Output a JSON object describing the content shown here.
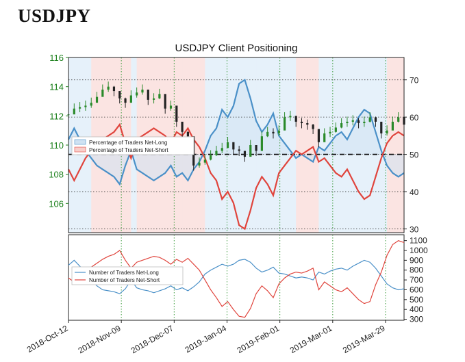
{
  "header": {
    "symbol": "USDJPY"
  },
  "chart_data": [
    {
      "type": "line",
      "title": "USDJPY Client Positioning",
      "x_ticks": [
        "2018-Oct-12",
        "2018-Nov-09",
        "2018-Dec-07",
        "2019-Jan-04",
        "2019-Feb-01",
        "2019-Mar-01",
        "2019-Mar-29"
      ],
      "price_axis": {
        "ticks": [
          106,
          108,
          110,
          112,
          114,
          116
        ],
        "ylim": [
          104,
          116
        ],
        "color": "#1a7f1a",
        "side": "left"
      },
      "pct_axis": {
        "ticks": [
          30,
          40,
          50,
          60,
          70
        ],
        "ylim": [
          29,
          76
        ],
        "side": "right"
      },
      "threshold": 50,
      "legend": {
        "placement": "middle-left",
        "entries": [
          "Percentage of Traders Net-Long",
          "Percentage of Traders Net-Short"
        ]
      },
      "series": [
        {
          "name": "Percentage of Traders Net-Long",
          "color": "#4a90c8",
          "x": [
            0,
            2,
            4,
            6,
            8,
            10,
            12,
            14,
            16,
            18,
            20,
            22,
            24,
            26,
            28,
            30,
            32,
            34,
            36,
            38,
            40,
            42,
            44,
            46,
            48,
            50,
            52,
            54,
            56,
            58,
            60,
            62,
            64,
            66,
            68,
            70,
            72,
            74,
            76,
            78,
            80,
            82,
            84,
            86,
            88,
            90,
            92,
            94,
            96,
            98,
            100,
            102,
            104,
            106,
            108,
            110,
            112,
            114,
            116,
            118
          ],
          "values": [
            54,
            57,
            54,
            51,
            49,
            47,
            46,
            45,
            44,
            42,
            47,
            51,
            46,
            45,
            44,
            43,
            44,
            45,
            47,
            44,
            45,
            43,
            46,
            48,
            51,
            55,
            57,
            62,
            60,
            63,
            69,
            70,
            65,
            59,
            56,
            58,
            61,
            55,
            53,
            51,
            49,
            50,
            49,
            48,
            52,
            51,
            53,
            55,
            56,
            54,
            57,
            60,
            62,
            61,
            56,
            51,
            47,
            45,
            44,
            45
          ]
        },
        {
          "name": "Percentage of Traders Net-Short",
          "color": "#e0443c",
          "x": [
            0,
            2,
            4,
            6,
            8,
            10,
            12,
            14,
            16,
            18,
            20,
            22,
            24,
            26,
            28,
            30,
            32,
            34,
            36,
            38,
            40,
            42,
            44,
            46,
            48,
            50,
            52,
            54,
            56,
            58,
            60,
            62,
            64,
            66,
            68,
            70,
            72,
            74,
            76,
            78,
            80,
            82,
            84,
            86,
            88,
            90,
            92,
            94,
            96,
            98,
            100,
            102,
            104,
            106,
            108,
            110,
            112,
            114,
            116,
            118
          ],
          "values": [
            46,
            43,
            46,
            49,
            51,
            53,
            54,
            55,
            56,
            58,
            53,
            49,
            54,
            55,
            56,
            57,
            56,
            55,
            53,
            56,
            55,
            57,
            54,
            52,
            49,
            45,
            43,
            38,
            40,
            37,
            31,
            30,
            35,
            41,
            44,
            42,
            39,
            45,
            47,
            49,
            51,
            50,
            51,
            52,
            48,
            49,
            47,
            45,
            44,
            46,
            43,
            40,
            38,
            39,
            44,
            49,
            53,
            55,
            56,
            55
          ]
        },
        {
          "name": "Price",
          "type": "ohlc",
          "color": "#222",
          "x": [
            0,
            2,
            4,
            6,
            8,
            10,
            12,
            14,
            16,
            18,
            20,
            22,
            24,
            26,
            28,
            30,
            32,
            34,
            36,
            38,
            40,
            42,
            44,
            46,
            48,
            50,
            52,
            54,
            56,
            58,
            60,
            62,
            64,
            66,
            68,
            70,
            72,
            74,
            76,
            78,
            80,
            82,
            84,
            86,
            88,
            90,
            92,
            94,
            96,
            98,
            100,
            102,
            104,
            106,
            108,
            110,
            112,
            114,
            116,
            118
          ],
          "values": [
            112.1,
            112.5,
            112.6,
            112.7,
            112.9,
            113.3,
            113.8,
            114.0,
            113.7,
            113.2,
            112.9,
            113.4,
            113.6,
            113.8,
            113.1,
            113.2,
            113.5,
            112.5,
            112.7,
            111.6,
            110.9,
            110.6,
            108.6,
            108.8,
            109.0,
            109.3,
            109.6,
            109.8,
            110.2,
            109.7,
            109.6,
            109.2,
            110.0,
            109.6,
            110.6,
            110.9,
            110.8,
            111.0,
            111.9,
            112.0,
            111.6,
            111.5,
            111.4,
            111.1,
            110.2,
            110.8,
            110.9,
            111.2,
            111.5,
            111.6,
            111.7,
            111.5,
            111.6,
            111.9,
            111.6,
            110.8,
            111.0,
            111.6,
            111.9,
            111.4
          ]
        }
      ]
    },
    {
      "type": "line",
      "y_ticks": [
        300,
        400,
        500,
        600,
        700,
        800,
        900,
        1000,
        1100
      ],
      "ylim": [
        290,
        1160
      ],
      "legend": {
        "placement": "top-left",
        "entries": [
          "Number of Traders Net-Long",
          "Number of Traders Net-Short"
        ]
      },
      "series": [
        {
          "name": "Number of Traders Net-Long",
          "color": "#4a90c8",
          "x": [
            0,
            2,
            4,
            6,
            8,
            10,
            12,
            14,
            16,
            18,
            20,
            22,
            24,
            26,
            28,
            30,
            32,
            34,
            36,
            38,
            40,
            42,
            44,
            46,
            48,
            50,
            52,
            54,
            56,
            58,
            60,
            62,
            64,
            66,
            68,
            70,
            72,
            74,
            76,
            78,
            80,
            82,
            84,
            86,
            88,
            90,
            92,
            94,
            96,
            98,
            100,
            102,
            104,
            106,
            108,
            110,
            112,
            114,
            116,
            118
          ],
          "values": [
            850,
            900,
            840,
            760,
            700,
            640,
            600,
            590,
            580,
            560,
            610,
            700,
            620,
            600,
            590,
            570,
            590,
            610,
            640,
            600,
            620,
            590,
            630,
            680,
            760,
            800,
            830,
            860,
            840,
            860,
            900,
            910,
            880,
            820,
            780,
            800,
            830,
            770,
            760,
            740,
            720,
            730,
            720,
            700,
            780,
            760,
            790,
            810,
            820,
            800,
            840,
            870,
            900,
            880,
            820,
            740,
            660,
            620,
            600,
            610
          ]
        },
        {
          "name": "Number of Traders Net-Short",
          "color": "#e0443c",
          "x": [
            0,
            2,
            4,
            6,
            8,
            10,
            12,
            14,
            16,
            18,
            20,
            22,
            24,
            26,
            28,
            30,
            32,
            34,
            36,
            38,
            40,
            42,
            44,
            46,
            48,
            50,
            52,
            54,
            56,
            58,
            60,
            62,
            64,
            66,
            68,
            70,
            72,
            74,
            76,
            78,
            80,
            82,
            84,
            86,
            88,
            90,
            92,
            94,
            96,
            98,
            100,
            102,
            104,
            106,
            108,
            110,
            112,
            114,
            116,
            118
          ],
          "values": [
            720,
            680,
            720,
            790,
            830,
            870,
            910,
            940,
            960,
            1000,
            900,
            820,
            880,
            900,
            920,
            940,
            930,
            900,
            860,
            910,
            880,
            920,
            860,
            800,
            700,
            600,
            520,
            430,
            480,
            400,
            330,
            320,
            410,
            560,
            640,
            590,
            520,
            660,
            720,
            760,
            780,
            770,
            790,
            820,
            600,
            680,
            640,
            600,
            580,
            620,
            560,
            500,
            460,
            480,
            650,
            780,
            950,
            1060,
            1100,
            1080
          ]
        }
      ]
    }
  ]
}
